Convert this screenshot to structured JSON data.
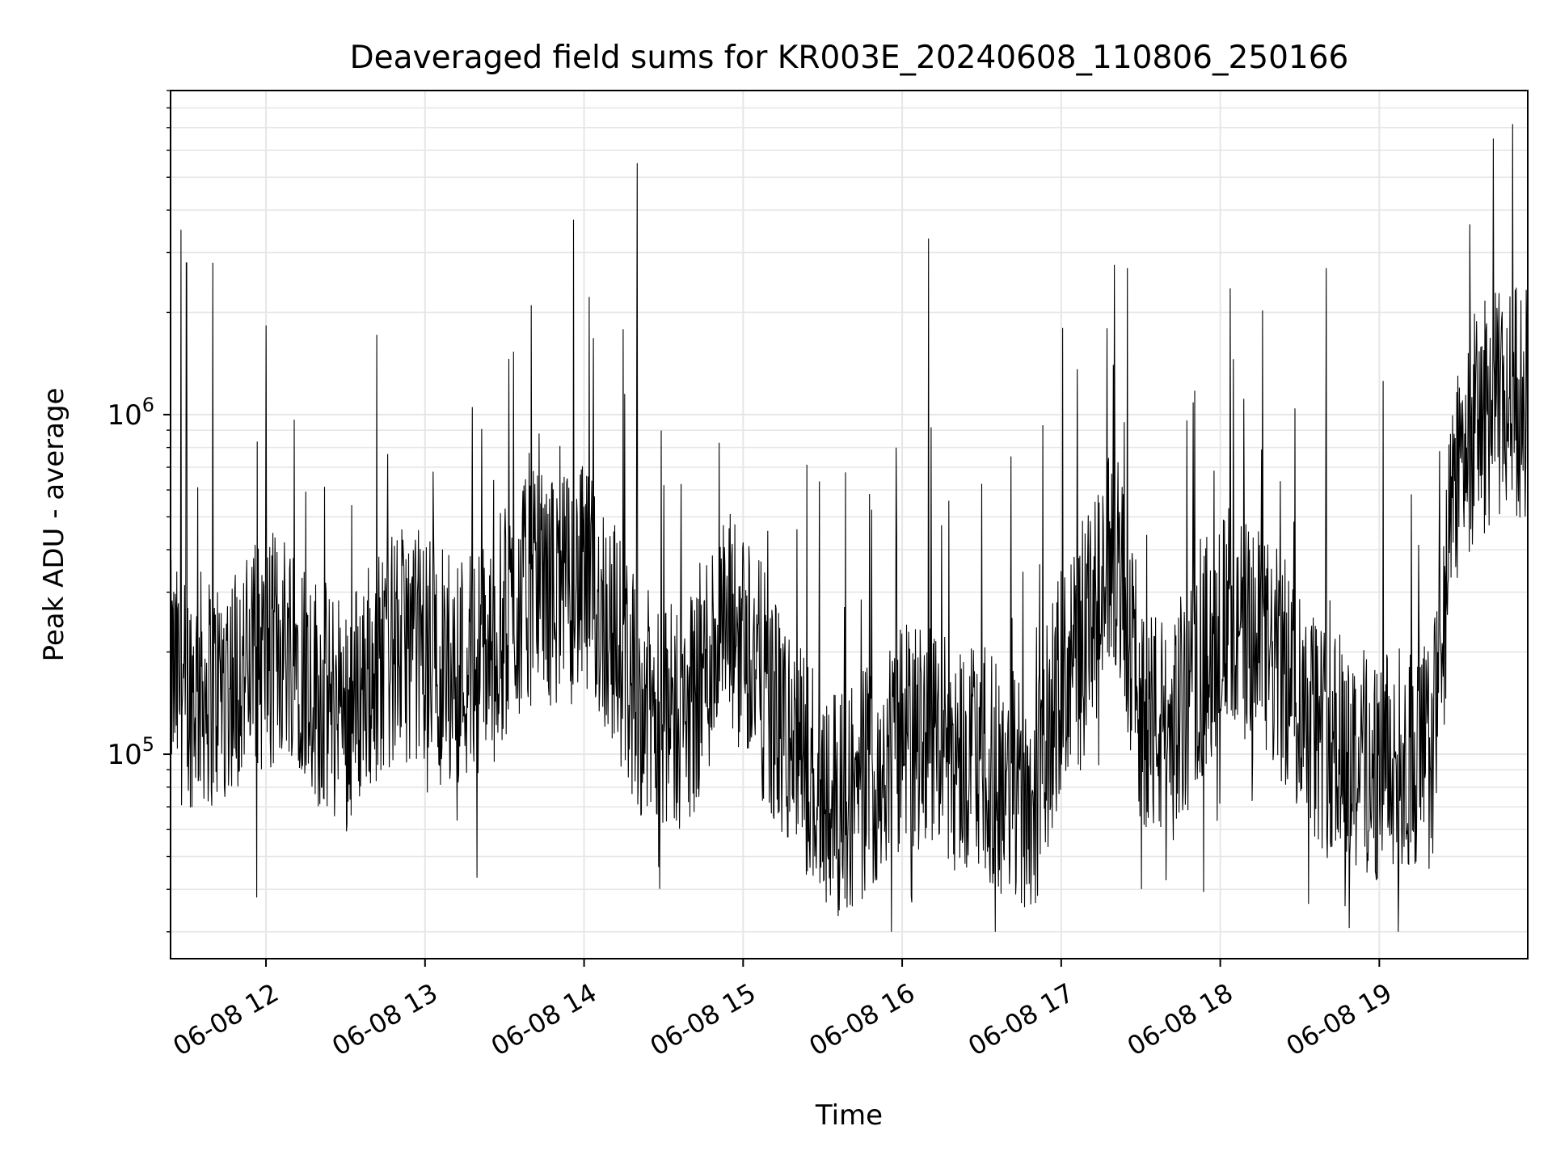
{
  "chart_data": {
    "type": "line",
    "title": "Deaveraged field sums for KR003E_20240608_110806_250166",
    "xlabel": "Time",
    "ylabel": "Peak ADU - average",
    "yscale": "log",
    "ylim": [
      25000,
      9000000
    ],
    "xlim": [
      "2024-06-08 11:24",
      "2024-06-08 19:56"
    ],
    "x_ticks": [
      {
        "label": "06-08 12",
        "time": "2024-06-08 12:00"
      },
      {
        "label": "06-08 13",
        "time": "2024-06-08 13:00"
      },
      {
        "label": "06-08 14",
        "time": "2024-06-08 14:00"
      },
      {
        "label": "06-08 15",
        "time": "2024-06-08 15:00"
      },
      {
        "label": "06-08 16",
        "time": "2024-06-08 16:00"
      },
      {
        "label": "06-08 17",
        "time": "2024-06-08 17:00"
      },
      {
        "label": "06-08 18",
        "time": "2024-06-08 18:00"
      },
      {
        "label": "06-08 19",
        "time": "2024-06-08 19:00"
      }
    ],
    "y_ticks": [
      {
        "base": "10",
        "exp": "5",
        "value": 100000
      },
      {
        "base": "10",
        "exp": "6",
        "value": 1000000
      }
    ],
    "grid": true,
    "line_color": "#000000",
    "grid_color": "#e6e6e6",
    "series": [
      {
        "x": [
          "2024-06-08 11:24",
          "2024-06-08 11:30",
          "2024-06-08 11:35",
          "2024-06-08 11:40",
          "2024-06-08 11:45",
          "2024-06-08 11:50",
          "2024-06-08 11:55",
          "2024-06-08 12:00",
          "2024-06-08 12:10",
          "2024-06-08 12:20",
          "2024-06-08 12:30",
          "2024-06-08 12:40",
          "2024-06-08 12:50",
          "2024-06-08 13:00",
          "2024-06-08 13:10",
          "2024-06-08 13:20",
          "2024-06-08 13:30",
          "2024-06-08 13:40",
          "2024-06-08 13:50",
          "2024-06-08 14:00",
          "2024-06-08 14:10",
          "2024-06-08 14:20",
          "2024-06-08 14:30",
          "2024-06-08 14:40",
          "2024-06-08 14:50",
          "2024-06-08 15:00",
          "2024-06-08 15:10",
          "2024-06-08 15:20",
          "2024-06-08 15:30",
          "2024-06-08 15:40",
          "2024-06-08 15:50",
          "2024-06-08 16:00",
          "2024-06-08 16:10",
          "2024-06-08 16:20",
          "2024-06-08 16:30",
          "2024-06-08 16:40",
          "2024-06-08 16:50",
          "2024-06-08 17:00",
          "2024-06-08 17:10",
          "2024-06-08 17:20",
          "2024-06-08 17:30",
          "2024-06-08 17:40",
          "2024-06-08 17:50",
          "2024-06-08 18:00",
          "2024-06-08 18:10",
          "2024-06-08 18:20",
          "2024-06-08 18:30",
          "2024-06-08 18:40",
          "2024-06-08 18:50",
          "2024-06-08 19:00",
          "2024-06-08 19:10",
          "2024-06-08 19:20",
          "2024-06-08 19:30",
          "2024-06-08 19:40",
          "2024-06-08 19:50",
          "2024-06-08 19:56"
        ],
        "y": [
          170000,
          150000,
          160000,
          150000,
          170000,
          175000,
          180000,
          200000,
          220000,
          150000,
          130000,
          180000,
          210000,
          210000,
          180000,
          190000,
          240000,
          310000,
          300000,
          320000,
          240000,
          150000,
          120000,
          140000,
          220000,
          240000,
          140000,
          100000,
          80000,
          75000,
          90000,
          110000,
          120000,
          100000,
          95000,
          80000,
          75000,
          170000,
          210000,
          400000,
          140000,
          110000,
          160000,
          250000,
          220000,
          190000,
          150000,
          110000,
          100000,
          90000,
          95000,
          100000,
          800000,
          1000000,
          1100000,
          1100000
        ]
      }
    ],
    "spikes": [
      {
        "x": "2024-06-08 11:28",
        "y": 3500000
      },
      {
        "x": "2024-06-08 11:30",
        "y": 2800000
      },
      {
        "x": "2024-06-08 11:40",
        "y": 2800000
      },
      {
        "x": "2024-06-08 13:40",
        "y": 2100000
      },
      {
        "x": "2024-06-08 14:20",
        "y": 5500000
      },
      {
        "x": "2024-06-08 16:10",
        "y": 3300000
      },
      {
        "x": "2024-06-08 17:25",
        "y": 2700000
      },
      {
        "x": "2024-06-08 18:40",
        "y": 2700000
      },
      {
        "x": "2024-06-08 19:43",
        "y": 6500000
      }
    ]
  }
}
